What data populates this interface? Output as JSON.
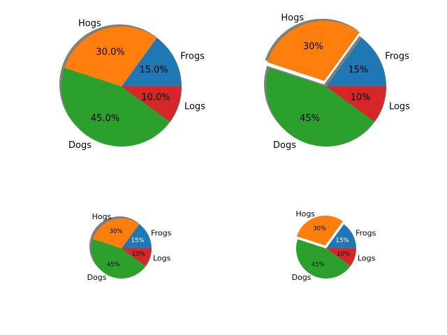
{
  "colors": {
    "Frogs": "#1f77b4",
    "Hogs": "#ff7f0e",
    "Dogs": "#2ca02c",
    "Logs": "#d62728",
    "shadow": "#7f7f7f"
  },
  "chart_data": [
    {
      "type": "pie",
      "categories": [
        "Frogs",
        "Hogs",
        "Dogs",
        "Logs"
      ],
      "values": [
        15,
        30,
        45,
        10
      ],
      "pct_labels": [
        "15.0%",
        "30.0%",
        "45.0%",
        "10.0%"
      ],
      "explode": [
        0,
        0,
        0,
        0
      ],
      "shadow": true,
      "start_angle_deg": 0,
      "title": ""
    },
    {
      "type": "pie",
      "categories": [
        "Frogs",
        "Hogs",
        "Dogs",
        "Logs"
      ],
      "values": [
        15,
        30,
        45,
        10
      ],
      "pct_labels": [
        "15%",
        "30%",
        "45%",
        "10%"
      ],
      "explode": [
        0,
        0.1,
        0,
        0
      ],
      "shadow": true,
      "start_angle_deg": 0,
      "title": ""
    },
    {
      "type": "pie",
      "categories": [
        "Frogs",
        "Hogs",
        "Dogs",
        "Logs"
      ],
      "values": [
        15,
        30,
        45,
        10
      ],
      "pct_labels": [
        "15%",
        "30%",
        "45%",
        "10%"
      ],
      "explode": [
        0,
        0,
        0,
        0
      ],
      "shadow": true,
      "start_angle_deg": 0,
      "title": ""
    },
    {
      "type": "pie",
      "categories": [
        "Frogs",
        "Hogs",
        "Dogs",
        "Logs"
      ],
      "values": [
        15,
        30,
        45,
        10
      ],
      "pct_labels": [
        "15%",
        "30%",
        "45%",
        "10%"
      ],
      "explode": [
        0,
        0.1,
        0,
        0
      ],
      "shadow": false,
      "start_angle_deg": 0,
      "title": ""
    }
  ]
}
